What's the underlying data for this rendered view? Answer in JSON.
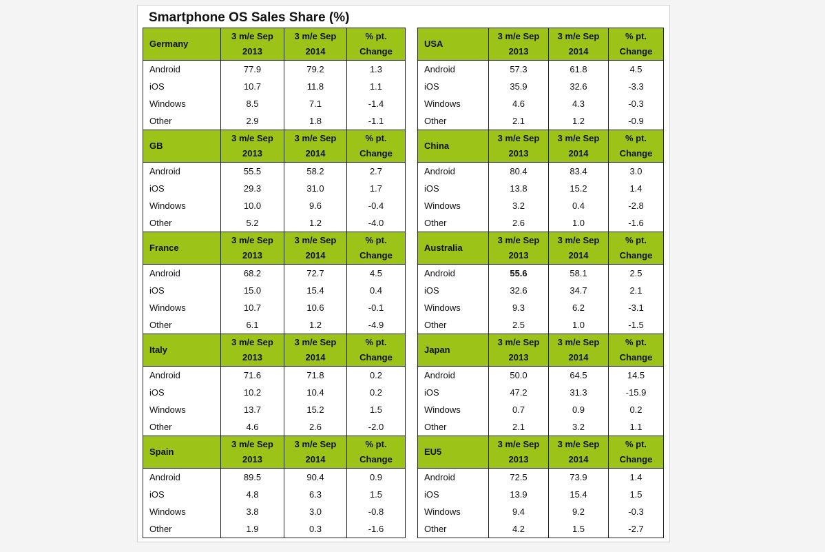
{
  "title": "Smartphone OS Sales Share (%)",
  "headers": {
    "col1": [
      "3 m/e Sep",
      "2013"
    ],
    "col2": [
      "3 m/e Sep",
      "2014"
    ],
    "col3": [
      "% pt.",
      "Change"
    ]
  },
  "left": [
    {
      "region": "Germany",
      "rows": [
        {
          "os": "Android",
          "v2013": "77.9",
          "v2014": "79.2",
          "chg": "1.3"
        },
        {
          "os": "iOS",
          "v2013": "10.7",
          "v2014": "11.8",
          "chg": "1.1"
        },
        {
          "os": "Windows",
          "v2013": "8.5",
          "v2014": "7.1",
          "chg": "-1.4"
        },
        {
          "os": "Other",
          "v2013": "2.9",
          "v2014": "1.8",
          "chg": "-1.1"
        }
      ]
    },
    {
      "region": "GB",
      "rows": [
        {
          "os": "Android",
          "v2013": "55.5",
          "v2014": "58.2",
          "chg": "2.7"
        },
        {
          "os": "iOS",
          "v2013": "29.3",
          "v2014": "31.0",
          "chg": "1.7"
        },
        {
          "os": "Windows",
          "v2013": "10.0",
          "v2014": "9.6",
          "chg": "-0.4"
        },
        {
          "os": "Other",
          "v2013": "5.2",
          "v2014": "1.2",
          "chg": "-4.0"
        }
      ]
    },
    {
      "region": "France",
      "rows": [
        {
          "os": "Android",
          "v2013": "68.2",
          "v2014": "72.7",
          "chg": "4.5"
        },
        {
          "os": "iOS",
          "v2013": "15.0",
          "v2014": "15.4",
          "chg": "0.4"
        },
        {
          "os": "Windows",
          "v2013": "10.7",
          "v2014": "10.6",
          "chg": "-0.1"
        },
        {
          "os": "Other",
          "v2013": "6.1",
          "v2014": "1.2",
          "chg": "-4.9"
        }
      ]
    },
    {
      "region": "Italy",
      "rows": [
        {
          "os": "Android",
          "v2013": "71.6",
          "v2014": "71.8",
          "chg": "0.2"
        },
        {
          "os": "iOS",
          "v2013": "10.2",
          "v2014": "10.4",
          "chg": "0.2"
        },
        {
          "os": "Windows",
          "v2013": "13.7",
          "v2014": "15.2",
          "chg": "1.5"
        },
        {
          "os": "Other",
          "v2013": "4.6",
          "v2014": "2.6",
          "chg": "-2.0"
        }
      ]
    },
    {
      "region": "Spain",
      "rows": [
        {
          "os": "Android",
          "v2013": "89.5",
          "v2014": "90.4",
          "chg": "0.9"
        },
        {
          "os": "iOS",
          "v2013": "4.8",
          "v2014": "6.3",
          "chg": "1.5"
        },
        {
          "os": "Windows",
          "v2013": "3.8",
          "v2014": "3.0",
          "chg": "-0.8"
        },
        {
          "os": "Other",
          "v2013": "1.9",
          "v2014": "0.3",
          "chg": "-1.6"
        }
      ]
    }
  ],
  "right": [
    {
      "region": "USA",
      "rows": [
        {
          "os": "Android",
          "v2013": "57.3",
          "v2014": "61.8",
          "chg": "4.5"
        },
        {
          "os": "iOS",
          "v2013": "35.9",
          "v2014": "32.6",
          "chg": "-3.3"
        },
        {
          "os": "Windows",
          "v2013": "4.6",
          "v2014": "4.3",
          "chg": "-0.3"
        },
        {
          "os": "Other",
          "v2013": "2.1",
          "v2014": "1.2",
          "chg": "-0.9"
        }
      ]
    },
    {
      "region": "China",
      "rows": [
        {
          "os": "Android",
          "v2013": "80.4",
          "v2014": "83.4",
          "chg": "3.0"
        },
        {
          "os": "iOS",
          "v2013": "13.8",
          "v2014": "15.2",
          "chg": "1.4"
        },
        {
          "os": "Windows",
          "v2013": "3.2",
          "v2014": "0.4",
          "chg": "-2.8"
        },
        {
          "os": "Other",
          "v2013": "2.6",
          "v2014": "1.0",
          "chg": "-1.6"
        }
      ]
    },
    {
      "region": "Australia",
      "rows": [
        {
          "os": "Android",
          "v2013": "55.6",
          "v2014": "58.1",
          "chg": "2.5",
          "bold2013": true
        },
        {
          "os": "iOS",
          "v2013": "32.6",
          "v2014": "34.7",
          "chg": "2.1"
        },
        {
          "os": "Windows",
          "v2013": "9.3",
          "v2014": "6.2",
          "chg": "-3.1"
        },
        {
          "os": "Other",
          "v2013": "2.5",
          "v2014": "1.0",
          "chg": "-1.5"
        }
      ]
    },
    {
      "region": "Japan",
      "rows": [
        {
          "os": "Android",
          "v2013": "50.0",
          "v2014": "64.5",
          "chg": "14.5"
        },
        {
          "os": "iOS",
          "v2013": "47.2",
          "v2014": "31.3",
          "chg": "-15.9"
        },
        {
          "os": "Windows",
          "v2013": "0.7",
          "v2014": "0.9",
          "chg": "0.2"
        },
        {
          "os": "Other",
          "v2013": "2.1",
          "v2014": "3.2",
          "chg": "1.1"
        }
      ]
    },
    {
      "region": "EU5",
      "rows": [
        {
          "os": "Android",
          "v2013": "72.5",
          "v2014": "73.9",
          "chg": "1.4"
        },
        {
          "os": "iOS",
          "v2013": "13.9",
          "v2014": "15.4",
          "chg": "1.5"
        },
        {
          "os": "Windows",
          "v2013": "9.4",
          "v2014": "9.2",
          "chg": "-0.3"
        },
        {
          "os": "Other",
          "v2013": "4.2",
          "v2014": "1.5",
          "chg": "-2.7"
        }
      ]
    }
  ],
  "colors": {
    "header_green": "#9cc418",
    "border": "#222222",
    "background": "#f4f4f4",
    "card": "#ffffff"
  }
}
